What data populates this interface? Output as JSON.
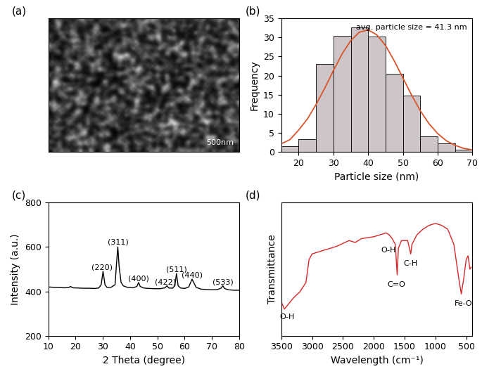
{
  "chart_data": [
    {
      "type": "image",
      "panel_label": "(a)",
      "scale_bar": "500nm"
    },
    {
      "type": "histogram",
      "panel_label": "(b)",
      "x_label": "Particle size (nm)",
      "y_label": "Frequency",
      "bins": [
        15,
        20,
        25,
        30,
        35,
        40,
        45,
        50,
        55,
        60,
        65,
        70
      ],
      "values": [
        1.5,
        3.3,
        23,
        30.5,
        32.7,
        30.2,
        20.5,
        14.8,
        4,
        2.2,
        0.5
      ],
      "color": "#cdc5c8",
      "series": [
        {
          "type": "line",
          "color": "#d9552d",
          "x": [
            15,
            17.5,
            20,
            22.5,
            25,
            27.5,
            30,
            32.5,
            35,
            37.5,
            40,
            42.5,
            45,
            47.5,
            50,
            52.5,
            55,
            57.5,
            60,
            62.5,
            65,
            67.5,
            70
          ],
          "values": [
            2.1,
            3.2,
            5.7,
            8.6,
            12.4,
            16.7,
            21.3,
            25.7,
            29.2,
            31.4,
            32.0,
            30.7,
            27.9,
            23.9,
            19.4,
            14.9,
            10.8,
            7.4,
            4.8,
            2.9,
            1.7,
            0.9,
            0.5
          ]
        }
      ],
      "annotations": [
        {
          "text": "avg. particle size = 41.3 nm"
        }
      ],
      "xlim": [
        15,
        70
      ],
      "xticks": [
        20,
        30,
        40,
        50,
        60,
        70
      ],
      "ylim": [
        0,
        35
      ],
      "yticks": [
        0,
        5,
        10,
        15,
        20,
        25,
        30,
        35
      ]
    },
    {
      "type": "line",
      "panel_label": "(c)",
      "x_label": "2 Theta (degree)",
      "y_label": "Intensity (a.u.)",
      "series": [
        {
          "color": "#000000",
          "x": [
            10,
            12,
            14,
            16,
            17.5,
            18.2,
            19,
            21,
            23,
            25,
            27,
            28.5,
            29.4,
            30.1,
            30.8,
            31.5,
            33,
            34.5,
            35.0,
            35.5,
            36.0,
            36.7,
            37.5,
            39,
            41,
            42.5,
            43.1,
            43.7,
            45,
            47,
            49,
            51,
            52.8,
            53.5,
            54.2,
            55.5,
            56.4,
            57.0,
            57.6,
            58.5,
            60,
            61.5,
            62.2,
            62.7,
            63.3,
            64.2,
            66,
            68,
            70,
            72,
            73.4,
            74.0,
            74.6,
            76,
            78,
            80
          ],
          "values": [
            420,
            418,
            417,
            416,
            417,
            422,
            416,
            415,
            414,
            414,
            413,
            415,
            430,
            490,
            430,
            418,
            418,
            430,
            520,
            600,
            510,
            440,
            425,
            418,
            416,
            422,
            440,
            422,
            415,
            413,
            412,
            412,
            416,
            425,
            415,
            414,
            425,
            480,
            425,
            415,
            413,
            420,
            440,
            455,
            440,
            418,
            410,
            408,
            407,
            408,
            415,
            425,
            413,
            407,
            405,
            405
          ]
        }
      ],
      "annotations": [
        {
          "text": "(220)",
          "x": 29.8,
          "y": 508
        },
        {
          "text": "(311)",
          "x": 35.5,
          "y": 622
        },
        {
          "text": "(400)",
          "x": 43.1,
          "y": 458
        },
        {
          "text": "(422)",
          "x": 53.0,
          "y": 442
        },
        {
          "text": "(511)",
          "x": 57.0,
          "y": 498
        },
        {
          "text": "(440)",
          "x": 62.7,
          "y": 474
        },
        {
          "text": "(533)",
          "x": 74.0,
          "y": 442
        }
      ],
      "xlim": [
        10,
        80
      ],
      "xticks": [
        10,
        20,
        30,
        40,
        50,
        60,
        70,
        80
      ],
      "ylim": [
        200,
        800
      ],
      "yticks": [
        200,
        400,
        600,
        800
      ]
    },
    {
      "type": "line",
      "panel_label": "(d)",
      "x_label": "Wavelength (cm⁻¹)",
      "y_label": "Transmittance",
      "series": [
        {
          "color": "#d62728",
          "x": [
            3500,
            3450,
            3400,
            3300,
            3200,
            3100,
            3050,
            3000,
            2800,
            2600,
            2400,
            2300,
            2200,
            2000,
            1900,
            1800,
            1750,
            1700,
            1650,
            1620,
            1600,
            1550,
            1450,
            1400,
            1380,
            1300,
            1200,
            1100,
            1000,
            900,
            800,
            700,
            620,
            580,
            540,
            500,
            470,
            440,
            420
          ],
          "values": [
            38,
            34,
            36,
            40,
            43,
            48,
            60,
            63,
            65,
            67,
            70,
            69,
            71,
            72,
            73,
            74,
            73,
            71,
            68,
            52,
            66,
            70,
            70,
            63,
            68,
            73,
            76,
            78,
            79,
            78,
            76,
            68,
            50,
            42,
            50,
            60,
            62,
            55,
            56
          ]
        }
      ],
      "annotations": [
        {
          "text": "O-H",
          "x": 3400,
          "y": 30
        },
        {
          "text": "O-H",
          "x": 1760,
          "y": 65
        },
        {
          "text": "C=O",
          "x": 1630,
          "y": 47
        },
        {
          "text": "C-H",
          "x": 1400,
          "y": 58
        },
        {
          "text": "Fe-O",
          "x": 540,
          "y": 37
        }
      ],
      "tick_labels": "x",
      "xlim": [
        3500,
        400
      ],
      "xticks": [
        3500,
        3000,
        2500,
        2000,
        1500,
        1000,
        500
      ],
      "ylim": [
        20,
        90
      ],
      "yticks": []
    }
  ]
}
